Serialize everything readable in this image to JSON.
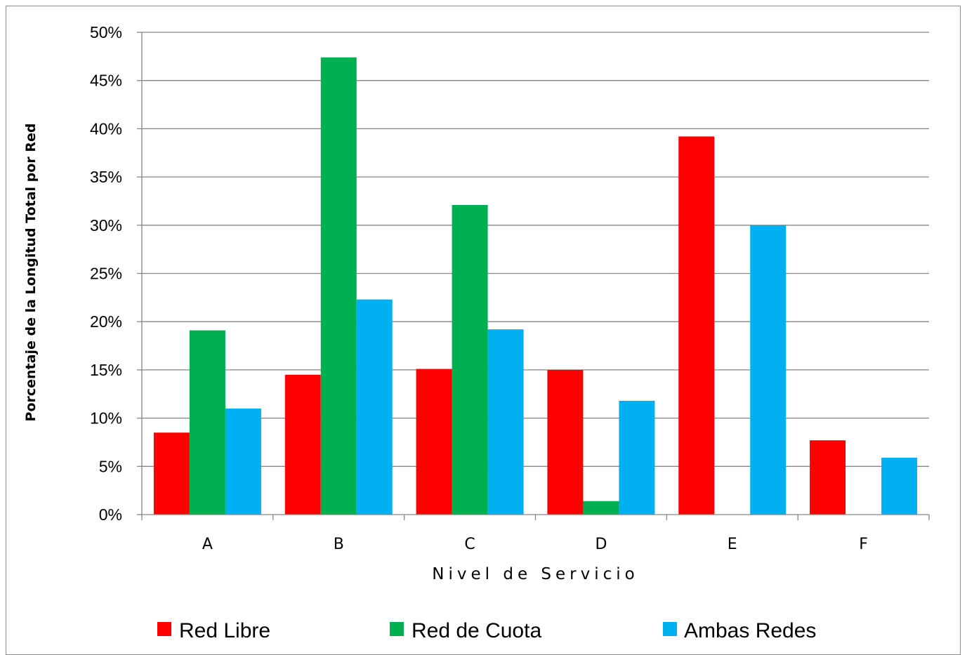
{
  "chart_data": {
    "type": "bar",
    "title": "",
    "xlabel": "Nivel de Servicio",
    "ylabel": "Porcentaje de la Longitud Total por Red",
    "categories": [
      "A",
      "B",
      "C",
      "D",
      "E",
      "F"
    ],
    "series": [
      {
        "name": "Red Libre",
        "color": "#ff0000",
        "values": [
          8.5,
          14.5,
          15.1,
          15.0,
          39.2,
          7.7
        ]
      },
      {
        "name": "Red de Cuota",
        "color": "#00b050",
        "values": [
          19.1,
          47.4,
          32.1,
          1.4,
          0,
          0
        ]
      },
      {
        "name": "Ambas Redes",
        "color": "#00b0f0",
        "values": [
          11.0,
          22.3,
          19.2,
          11.8,
          30.0,
          5.9
        ]
      }
    ],
    "ylim": [
      0,
      50
    ],
    "yticks": [
      0,
      5,
      10,
      15,
      20,
      25,
      30,
      35,
      40,
      45,
      50
    ],
    "ytick_labels": [
      "0%",
      "5%",
      "10%",
      "15%",
      "20%",
      "25%",
      "30%",
      "35%",
      "40%",
      "45%",
      "50%"
    ],
    "grid": true,
    "legend": "bottom"
  }
}
